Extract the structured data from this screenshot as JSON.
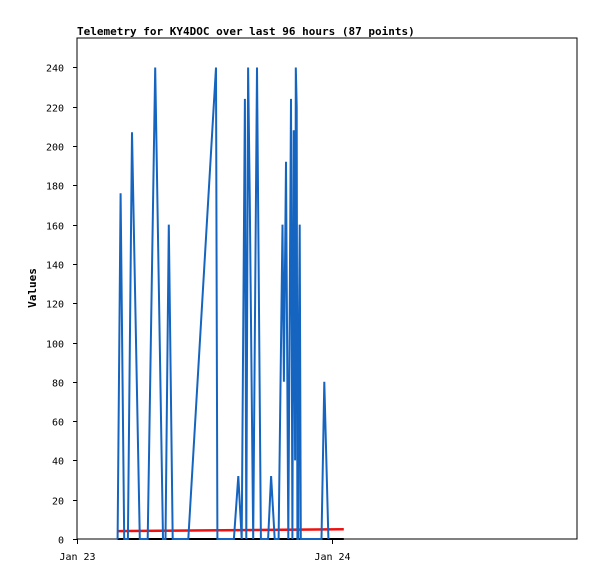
{
  "chart_data": {
    "type": "line",
    "title": "Telemetry for KY4DOC over last 96 hours (87 points)",
    "xlabel": "",
    "ylabel": "Values",
    "x_ticks": [
      "Jan 23",
      "Jan 24"
    ],
    "xlim": [
      "Jan 23 00:00",
      "Jan 24 23:00"
    ],
    "ylim": [
      0,
      255
    ],
    "y_ticks": [
      0,
      20,
      40,
      60,
      80,
      100,
      120,
      140,
      160,
      180,
      200,
      220,
      240
    ],
    "colors": {
      "series1": "#1565c0",
      "series2": "#ee1111",
      "series3": "#000000",
      "frame": "#000000"
    },
    "series": [
      {
        "x": [
          "Jan 23 03:49",
          "Jan 23 04:06",
          "Jan 23 04:26",
          "Jan 23 04:47",
          "Jan 23 05:10",
          "Jan 23 05:54",
          "Jan 23 06:39",
          "Jan 23 07:21",
          "Jan 23 08:05",
          "Jan 23 08:19",
          "Jan 23 08:38",
          "Jan 23 09:00",
          "Jan 23 09:24",
          "Jan 23 09:49",
          "Jan 23 10:01",
          "Jan 23 10:28",
          "Jan 23 13:04",
          "Jan 23 13:12",
          "Jan 23 13:32",
          "Jan 23 13:53",
          "Jan 23 14:12",
          "Jan 23 14:45",
          "Jan 23 15:10",
          "Jan 23 15:29",
          "Jan 23 15:47",
          "Jan 23 15:55",
          "Jan 23 16:05",
          "Jan 23 16:14",
          "Jan 23 16:34",
          "Jan 23 16:55",
          "Jan 23 17:17",
          "Jan 23 17:37",
          "Jan 23 17:58",
          "Jan 23 18:15",
          "Jan 23 18:35",
          "Jan 23 18:57",
          "Jan 23 19:19",
          "Jan 23 19:27",
          "Jan 23 19:39",
          "Jan 23 19:52",
          "Jan 23 20:07",
          "Jan 23 20:15",
          "Jan 23 20:22",
          "Jan 23 20:30",
          "Jan 23 20:34",
          "Jan 23 20:39",
          "Jan 23 20:43",
          "Jan 23 20:48",
          "Jan 23 20:52",
          "Jan 23 20:56",
          "Jan 23 21:02",
          "Jan 23 21:07",
          "Jan 23 21:13",
          "Jan 23 21:30",
          "Jan 23 21:47",
          "Jan 23 22:10",
          "Jan 23 22:19",
          "Jan 23 22:25",
          "Jan 23 22:41",
          "Jan 23 22:59",
          "Jan 23 23:15",
          "Jan 23 23:38"
        ],
        "values": [
          0,
          176,
          0,
          0,
          207,
          0,
          0,
          240,
          0,
          0,
          160,
          0,
          0,
          0,
          0,
          0,
          240,
          0,
          0,
          0,
          0,
          0,
          32,
          0,
          224,
          0,
          240,
          176,
          0,
          240,
          0,
          0,
          0,
          32,
          0,
          0,
          160,
          80,
          192,
          0,
          224,
          0,
          208,
          40,
          240,
          220,
          0,
          0,
          112,
          160,
          0,
          0,
          0,
          0,
          0,
          0,
          0,
          0,
          0,
          0,
          80,
          0
        ]
      },
      {
        "x": [
          "Jan 23 03:49",
          "Jan 24 01:05"
        ],
        "values": [
          4,
          5
        ]
      },
      {
        "x": [
          "Jan 23 03:49",
          "Jan 24 01:05"
        ],
        "values": [
          0,
          0
        ]
      }
    ]
  }
}
